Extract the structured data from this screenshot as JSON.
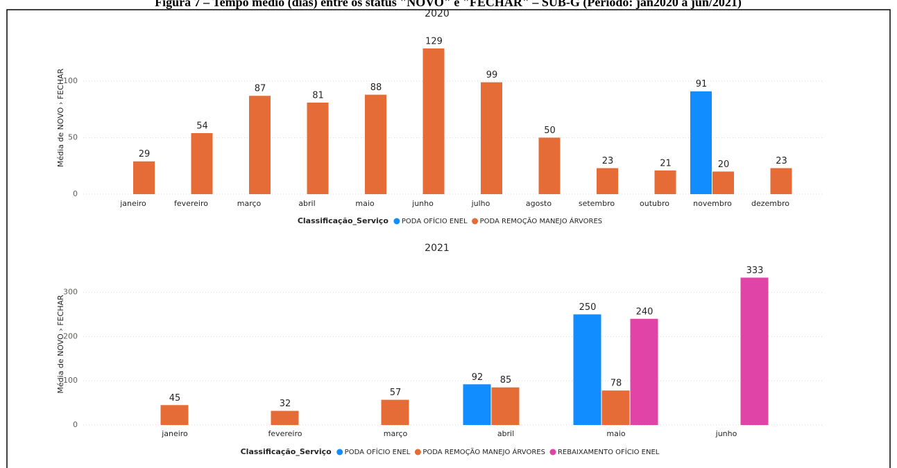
{
  "caption": "Figura 7 – Tempo médio (dias) entre os status \"NOVO\" e \"FECHAR\" – SUB-G (Período: jan2020 a jun/2021)",
  "chart_data": [
    {
      "type": "bar",
      "title": "2020",
      "y_label": "Média de NOVO › FECHAR",
      "legend_title": "Classificação_Serviço",
      "categories": [
        "janeiro",
        "fevereiro",
        "março",
        "abril",
        "maio",
        "junho",
        "julho",
        "agosto",
        "setembro",
        "outubro",
        "novembro",
        "dezembro"
      ],
      "series": [
        {
          "name": "PODA OFÍCIO ENEL",
          "color": "#118dff",
          "values": [
            null,
            null,
            null,
            null,
            null,
            null,
            null,
            null,
            null,
            null,
            91,
            null
          ]
        },
        {
          "name": "PODA REMOÇÃO MANEJO ÁRVORES",
          "color": "#e66c37",
          "values": [
            29,
            54,
            87,
            81,
            88,
            129,
            99,
            50,
            23,
            21,
            20,
            23
          ]
        }
      ],
      "ylim": [
        0,
        135
      ],
      "yticks": [
        0,
        50,
        100
      ],
      "grid": true
    },
    {
      "type": "bar",
      "title": "2021",
      "y_label": "Média de NOVO › FECHAR",
      "legend_title": "Classificação_Serviço",
      "categories": [
        "janeiro",
        "fevereiro",
        "março",
        "abril",
        "maio",
        "junho"
      ],
      "series": [
        {
          "name": "PODA OFÍCIO ENEL",
          "color": "#118dff",
          "values": [
            null,
            null,
            null,
            92,
            250,
            null
          ]
        },
        {
          "name": "PODA REMOÇÃO MANEJO ÁRVORES",
          "color": "#e66c37",
          "values": [
            45,
            32,
            57,
            85,
            78,
            null
          ]
        },
        {
          "name": "REBAIXAMENTO OFÍCIO ENEL",
          "color": "#e044a7",
          "values": [
            null,
            null,
            null,
            null,
            240,
            333
          ]
        }
      ],
      "ylim": [
        0,
        365
      ],
      "yticks": [
        0,
        100,
        200,
        300
      ],
      "grid": true
    }
  ]
}
